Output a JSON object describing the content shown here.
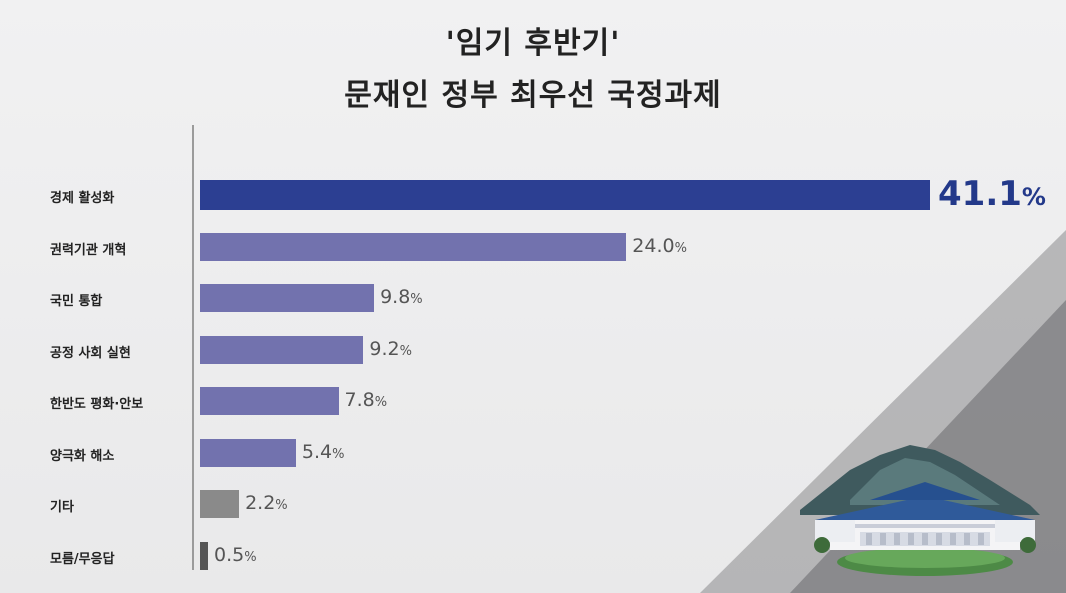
{
  "chart_data": {
    "type": "bar",
    "orientation": "horizontal",
    "title": "'임기 후반기'",
    "subtitle": "문재인 정부 최우선 국정과제",
    "categories": [
      "경제 활성화",
      "권력기관 개혁",
      "국민 통합",
      "공정 사회 실현",
      "한반도 평화·안보",
      "양극화 해소",
      "기타",
      "모름/무응답"
    ],
    "values": [
      41.1,
      24.0,
      9.8,
      9.2,
      7.8,
      5.4,
      2.2,
      0.5
    ],
    "value_labels": [
      "41.1",
      "24.0",
      "9.8",
      "9.2",
      "7.8",
      "5.4",
      "2.2",
      "0.5"
    ],
    "unit": "%",
    "xlim": [
      0,
      41.1
    ],
    "grid": false,
    "legend": "none",
    "colors": {
      "highlight": "#2c3f92",
      "main": "#7272ae",
      "other": "#8a8a8a",
      "no_answer": "#555555"
    }
  }
}
